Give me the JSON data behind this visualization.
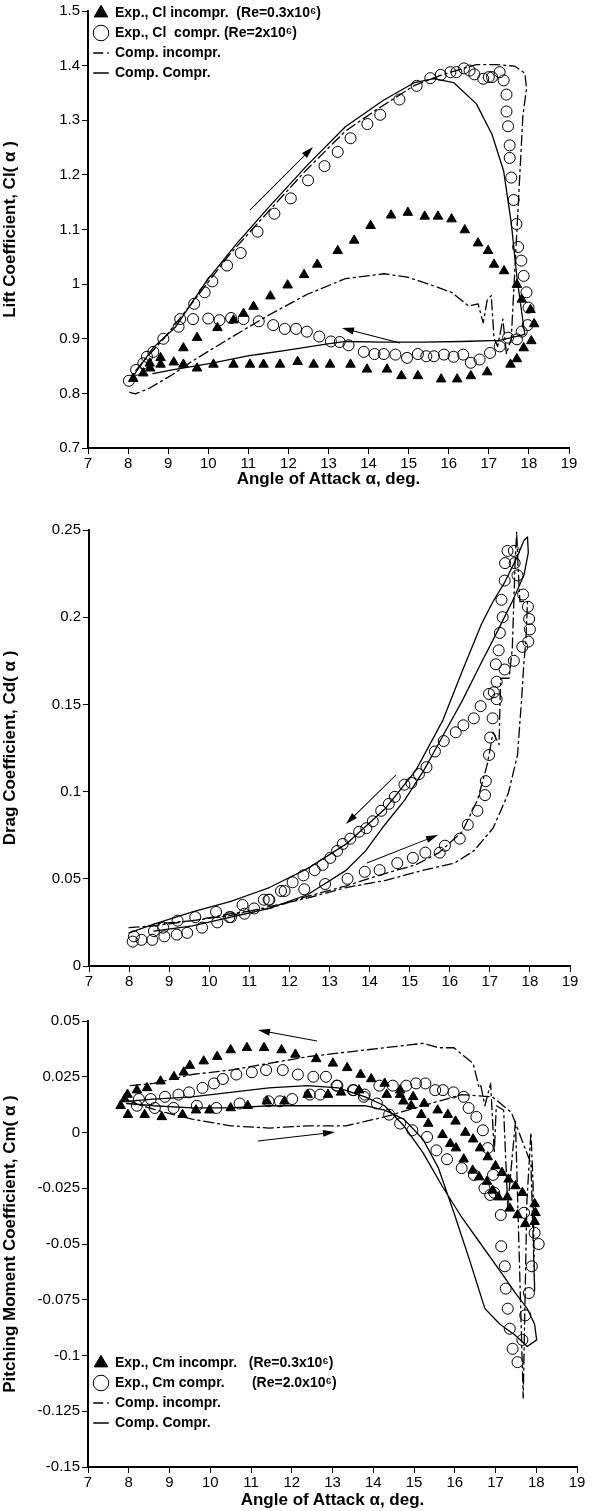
{
  "chart_data": [
    {
      "type": "scatter",
      "xlabel": "Angle of Attack α, deg.",
      "ylabel": "Lift Coefficient, Cl( α )",
      "xlim": [
        7,
        19
      ],
      "xticks": [
        7,
        8,
        9,
        10,
        11,
        12,
        13,
        14,
        15,
        16,
        17,
        18,
        19
      ],
      "ylim": [
        0.7,
        1.5
      ],
      "yticks": [
        0.7,
        0.8,
        0.9,
        1,
        1.1,
        1.2,
        1.3,
        1.4,
        1.5
      ],
      "grid": false,
      "legend": "top left",
      "series": [
        {
          "name": "Exp., Cl incompr.  (Re=0.3x10⁶)",
          "type": "scatter",
          "marker": "triangle",
          "color": "#000000",
          "x": [
            8.13,
            8.38,
            8.55,
            8.81,
            9.14,
            9.38,
            9.72,
            10.13,
            10.63,
            11.04,
            11.38,
            11.79,
            12.23,
            12.63,
            13.04,
            13.55,
            13.96,
            14.46,
            14.82,
            15.23,
            15.81,
            16.21,
            16.55,
            16.96,
            17.54,
            17.7,
            17.87,
            18.06,
            18.13,
            18.04,
            17.82,
            17.7,
            17.38,
            17.13,
            16.98,
            16.73,
            16.4,
            16.07,
            15.73,
            15.4,
            14.98,
            14.56,
            14.05,
            13.64,
            13.23,
            12.72,
            12.39,
            11.98,
            11.55,
            11.13,
            10.88,
            10.63,
            10.23,
            9.72,
            9.38,
            8.81,
            8.54
          ],
          "values": [
            0.827,
            0.837,
            0.846,
            0.853,
            0.857,
            0.853,
            0.846,
            0.853,
            0.853,
            0.853,
            0.853,
            0.853,
            0.858,
            0.853,
            0.853,
            0.853,
            0.844,
            0.844,
            0.832,
            0.832,
            0.826,
            0.826,
            0.832,
            0.839,
            0.853,
            0.863,
            0.883,
            0.896,
            0.927,
            0.953,
            0.972,
            0.999,
            1.024,
            1.036,
            1.061,
            1.075,
            1.099,
            1.119,
            1.124,
            1.124,
            1.131,
            1.126,
            1.107,
            1.08,
            1.061,
            1.036,
            1.017,
            0.998,
            0.978,
            0.959,
            0.946,
            0.934,
            0.92,
            0.902,
            0.883,
            0.865,
            0.855
          ]
        },
        {
          "name": "Exp., Cl  compr. (Re=2x10⁶)",
          "type": "scatter",
          "marker": "circle",
          "color": "#000000",
          "x": [
            8.02,
            8.2,
            8.38,
            8.47,
            8.63,
            8.88,
            9.26,
            9.65,
            9.91,
            10.1,
            10.47,
            10.81,
            11.23,
            11.65,
            12.06,
            12.49,
            12.9,
            13.23,
            13.55,
            13.97,
            14.29,
            14.77,
            15.2,
            15.54,
            15.8,
            16.04,
            16.19,
            16.38,
            16.52,
            16.64,
            16.86,
            17.0,
            17.08,
            17.27,
            17.37,
            17.44,
            17.44,
            17.48,
            17.52,
            17.52,
            17.56,
            17.62,
            17.69,
            17.73,
            17.81,
            17.87,
            17.94,
            17.99,
            17.97,
            17.82,
            17.7,
            17.48,
            17.27,
            17.03,
            16.77,
            16.55,
            16.36,
            16.12,
            15.88,
            15.63,
            15.44,
            15.23,
            14.96,
            14.67,
            14.38,
            14.15,
            13.88,
            13.5,
            13.28,
            13.06,
            12.77,
            12.46,
            12.19,
            11.91,
            11.62,
            11.26,
            10.88,
            10.57,
            10.28,
            10.0,
            9.62,
            9.3
          ],
          "values": [
            0.823,
            0.843,
            0.855,
            0.867,
            0.876,
            0.9,
            0.922,
            0.964,
            0.985,
            1.005,
            1.034,
            1.057,
            1.096,
            1.129,
            1.157,
            1.19,
            1.216,
            1.242,
            1.267,
            1.293,
            1.31,
            1.338,
            1.363,
            1.377,
            1.383,
            1.388,
            1.388,
            1.395,
            1.391,
            1.384,
            1.376,
            1.379,
            1.379,
            1.388,
            1.373,
            1.347,
            1.316,
            1.289,
            1.254,
            1.231,
            1.195,
            1.154,
            1.11,
            1.068,
            1.043,
            1.015,
            0.985,
            0.957,
            0.925,
            0.913,
            0.899,
            0.902,
            0.886,
            0.874,
            0.862,
            0.856,
            0.871,
            0.867,
            0.871,
            0.868,
            0.868,
            0.872,
            0.865,
            0.871,
            0.872,
            0.872,
            0.876,
            0.888,
            0.894,
            0.895,
            0.904,
            0.913,
            0.918,
            0.918,
            0.925,
            0.932,
            0.936,
            0.938,
            0.934,
            0.937,
            0.936,
            0.936
          ]
        },
        {
          "name": "Comp. incompr.",
          "type": "line",
          "line_style": "dashdot",
          "marker": "none",
          "color": "#000000",
          "x": [
            8.04,
            8.18,
            8.52,
            9.1,
            9.58,
            10.54,
            11.5,
            12.46,
            13.42,
            14.38,
            14.96,
            15.54,
            16.07,
            16.5,
            16.73,
            16.86,
            16.96,
            17.06,
            17.13,
            17.22,
            17.35,
            17.44,
            17.56,
            17.65,
            17.75,
            17.85,
            17.94,
            17.9,
            17.65,
            17.17,
            16.69,
            15.83,
            15.15,
            14.19,
            13.42,
            12.46,
            11.5,
            10.54,
            9.58,
            8.9,
            8.42,
            8.08
          ],
          "values": [
            0.802,
            0.799,
            0.809,
            0.834,
            0.858,
            0.901,
            0.943,
            0.981,
            1.01,
            1.019,
            1.013,
            0.999,
            0.985,
            0.96,
            0.964,
            0.929,
            0.971,
            0.979,
            0.901,
            0.886,
            0.936,
            0.872,
            0.901,
            1.027,
            1.168,
            1.309,
            1.358,
            1.386,
            1.399,
            1.402,
            1.402,
            1.383,
            1.364,
            1.319,
            1.28,
            1.21,
            1.133,
            1.055,
            0.964,
            0.901,
            0.862,
            0.832
          ]
        },
        {
          "name": "Comp. Compr.",
          "type": "line",
          "line_style": "solid",
          "marker": "none",
          "color": "#000000",
          "x": [
            8.04,
            8.62,
            9.19,
            9.96,
            10.73,
            11.5,
            12.46,
            13.42,
            14.38,
            15.15,
            15.63,
            16.12,
            16.69,
            17.08,
            17.37,
            17.56,
            17.7,
            17.87,
            17.9,
            17.27,
            16.31,
            15.35,
            14.38,
            13.42,
            12.94,
            11.98,
            11.02,
            10.06,
            9.1,
            8.62
          ],
          "values": [
            0.823,
            0.883,
            0.922,
            1.006,
            1.076,
            1.14,
            1.217,
            1.288,
            1.337,
            1.369,
            1.376,
            1.369,
            1.33,
            1.274,
            1.207,
            1.112,
            1.013,
            0.922,
            0.908,
            0.897,
            0.895,
            0.894,
            0.894,
            0.895,
            0.89,
            0.879,
            0.869,
            0.855,
            0.843,
            0.836
          ]
        }
      ]
    },
    {
      "type": "scatter",
      "ylabel": "Drag Coefficient, Cd( α )",
      "xlim": [
        7,
        19
      ],
      "xticks": [
        7,
        8,
        9,
        10,
        11,
        12,
        13,
        14,
        15,
        16,
        17,
        18,
        19
      ],
      "ylim": [
        0,
        0.25
      ],
      "yticks": [
        0,
        0.05,
        0.1,
        0.15,
        0.2,
        0.25
      ],
      "grid": false,
      "series": [
        {
          "type": "scatter",
          "marker": "circle",
          "color": "#000000",
          "x": [
            8.09,
            8.31,
            8.58,
            8.88,
            9.19,
            9.45,
            9.82,
            10.2,
            10.54,
            10.88,
            11.12,
            11.5,
            11.88,
            12.37,
            12.89,
            13.45,
            13.88,
            14.25,
            14.69,
            15.08,
            15.39,
            15.75,
            15.88,
            16.25,
            16.45,
            16.69,
            16.88,
            16.9,
            16.98,
            17.01,
            17.07,
            17.17,
            17.37,
            17.6,
            17.81,
            17.96,
            18.0,
            17.98,
            17.95,
            17.83,
            17.69,
            17.62,
            17.6,
            17.44,
            17.38,
            17.37,
            17.29,
            17.32,
            17.25,
            17.22,
            17.15,
            17.17,
            17.1,
            16.98,
            16.77,
            16.6,
            16.34,
            16.15,
            15.85,
            15.63,
            15.42,
            15.23,
            15.04,
            14.87,
            14.63,
            14.48,
            14.29,
            14.08,
            13.92,
            13.74,
            13.52,
            13.33,
            13.19,
            13.02,
            12.83,
            12.63,
            12.35,
            12.08,
            11.79,
            11.48,
            11.36,
            10.83,
            10.5,
            10.17,
            9.65,
            9.21,
            8.85,
            8.62,
            8.12
          ],
          "values": [
            0.014,
            0.015,
            0.015,
            0.017,
            0.018,
            0.019,
            0.022,
            0.025,
            0.028,
            0.03,
            0.033,
            0.038,
            0.043,
            0.044,
            0.047,
            0.05,
            0.054,
            0.055,
            0.059,
            0.062,
            0.065,
            0.065,
            0.069,
            0.073,
            0.081,
            0.089,
            0.098,
            0.106,
            0.121,
            0.131,
            0.142,
            0.153,
            0.17,
            0.175,
            0.183,
            0.186,
            0.193,
            0.199,
            0.206,
            0.213,
            0.224,
            0.231,
            0.238,
            0.238,
            0.231,
            0.221,
            0.21,
            0.2,
            0.191,
            0.181,
            0.173,
            0.163,
            0.157,
            0.156,
            0.149,
            0.142,
            0.138,
            0.134,
            0.129,
            0.123,
            0.114,
            0.11,
            0.105,
            0.104,
            0.097,
            0.093,
            0.089,
            0.083,
            0.079,
            0.077,
            0.073,
            0.07,
            0.066,
            0.062,
            0.058,
            0.055,
            0.052,
            0.048,
            0.043,
            0.038,
            0.038,
            0.035,
            0.028,
            0.031,
            0.028,
            0.026,
            0.022,
            0.02,
            0.017
          ]
        },
        {
          "type": "line",
          "line_style": "dashdot",
          "marker": "none",
          "color": "#000000",
          "x": [
            8.0,
            8.62,
            9.58,
            10.54,
            11.5,
            12.46,
            13.42,
            14.38,
            15.35,
            16.12,
            16.6,
            17.08,
            17.46,
            17.69,
            17.79,
            17.85,
            17.9,
            17.94,
            17.75,
            17.7,
            17.67,
            17.63,
            17.56,
            17.48,
            17.27,
            17.23,
            17.08,
            16.94,
            16.69,
            16.31,
            15.73,
            15.15,
            14.38,
            13.42,
            12.46,
            11.5,
            10.54,
            9.58,
            8.62
          ],
          "values": [
            0.022,
            0.023,
            0.026,
            0.029,
            0.034,
            0.039,
            0.045,
            0.049,
            0.055,
            0.059,
            0.066,
            0.079,
            0.099,
            0.121,
            0.152,
            0.174,
            0.187,
            0.209,
            0.209,
            0.231,
            0.249,
            0.231,
            0.182,
            0.165,
            0.165,
            0.127,
            0.134,
            0.116,
            0.095,
            0.077,
            0.065,
            0.058,
            0.053,
            0.046,
            0.04,
            0.033,
            0.03,
            0.026,
            0.024
          ]
        },
        {
          "type": "line",
          "line_style": "solid",
          "marker": "none",
          "color": "#000000",
          "x": [
            8.0,
            8.62,
            9.58,
            10.54,
            11.5,
            12.46,
            13.42,
            14.38,
            15.15,
            15.83,
            16.31,
            16.79,
            17.08,
            17.37,
            17.65,
            17.85,
            17.94,
            17.96,
            17.85,
            17.56,
            17.17,
            16.79,
            16.31,
            15.83,
            15.35,
            14.87,
            14.38,
            13.9,
            13.42,
            12.46,
            11.5,
            10.54,
            9.58,
            8.62
          ],
          "values": [
            0.019,
            0.024,
            0.031,
            0.037,
            0.045,
            0.056,
            0.07,
            0.09,
            0.112,
            0.141,
            0.169,
            0.196,
            0.209,
            0.22,
            0.233,
            0.244,
            0.246,
            0.237,
            0.224,
            0.209,
            0.191,
            0.174,
            0.152,
            0.132,
            0.112,
            0.095,
            0.081,
            0.066,
            0.055,
            0.041,
            0.033,
            0.028,
            0.023,
            0.02
          ]
        }
      ]
    },
    {
      "type": "scatter",
      "xlabel": "Angle of Attack α, deg.",
      "ylabel": "Pitching Moment Coefficient, Cm( α )",
      "xlim": [
        7,
        19
      ],
      "xticks": [
        7,
        8,
        9,
        10,
        11,
        12,
        13,
        14,
        15,
        16,
        17,
        18,
        19
      ],
      "ylim": [
        -0.15,
        0.05
      ],
      "yticks": [
        -0.15,
        -0.125,
        -0.1,
        -0.075,
        -0.05,
        -0.025,
        0,
        0.025,
        0.05
      ],
      "grid": false,
      "legend": "bottom left",
      "series": [
        {
          "name": "Exp., Cm incompr.   (Re=0.3x10⁶)",
          "type": "scatter",
          "marker": "triangle",
          "color": "#000000",
          "x": [
            7.8,
            7.9,
            7.97,
            8.2,
            8.45,
            8.78,
            9.11,
            9.35,
            9.5,
            9.84,
            10.17,
            10.5,
            10.9,
            11.32,
            11.75,
            12.09,
            12.6,
            13.01,
            13.36,
            13.69,
            13.95,
            14.28,
            14.66,
            14.98,
            15.25,
            15.58,
            15.83,
            16.02,
            16.26,
            16.45,
            16.62,
            16.81,
            17.0,
            17.16,
            17.32,
            17.49,
            17.66,
            17.96,
            17.98,
            17.96,
            17.73,
            17.54,
            17.35,
            17.29,
            17.07,
            16.93,
            16.79,
            16.6,
            16.44,
            16.22,
            16.03,
            15.89,
            15.7,
            15.35,
            15.18,
            14.93,
            14.74,
            14.66,
            14.33,
            13.65,
            13.21,
            12.89,
            12.39,
            11.82,
            11.39,
            10.92,
            10.5,
            9.98,
            9.65,
            9.32,
            8.81,
            8.39,
            7.98
          ],
          "values": [
            0.012,
            0.015,
            0.017,
            0.019,
            0.02,
            0.023,
            0.025,
            0.027,
            0.03,
            0.032,
            0.034,
            0.037,
            0.038,
            0.038,
            0.037,
            0.035,
            0.033,
            0.031,
            0.029,
            0.026,
            0.024,
            0.022,
            0.019,
            0.016,
            0.013,
            0.01,
            0.008,
            0.005,
            0.0,
            -0.003,
            -0.007,
            -0.011,
            -0.015,
            -0.018,
            -0.021,
            -0.024,
            -0.027,
            -0.032,
            -0.036,
            -0.04,
            -0.041,
            -0.037,
            -0.034,
            -0.029,
            -0.029,
            -0.026,
            -0.022,
            -0.02,
            -0.017,
            -0.012,
            -0.007,
            -0.005,
            -0.001,
            0.004,
            0.008,
            0.012,
            0.014,
            0.017,
            0.017,
            0.019,
            0.018,
            0.017,
            0.017,
            0.014,
            0.014,
            0.012,
            0.011,
            0.01,
            0.01,
            0.008,
            0.007,
            0.008,
            0.008
          ]
        },
        {
          "name": "Exp., Cm compr.       (Re=2.0x10⁶)",
          "type": "scatter",
          "marker": "circle",
          "color": "#000000",
          "x": [
            8.25,
            8.54,
            8.89,
            9.22,
            9.48,
            9.81,
            10.09,
            10.31,
            10.64,
            11.02,
            11.37,
            11.78,
            12.15,
            12.53,
            12.84,
            13.12,
            13.52,
            13.79,
            14.09,
            14.39,
            14.66,
            14.96,
            15.32,
            15.55,
            15.81,
            16.17,
            16.47,
            16.73,
            16.87,
            17.13,
            17.14,
            17.23,
            17.25,
            17.3,
            17.35,
            17.42,
            17.54,
            17.66,
            17.73,
            17.82,
            17.89,
            17.96,
            18.06,
            17.7,
            16.97,
            16.94,
            16.81,
            16.69,
            16.53,
            16.34,
            16.22,
            15.97,
            15.71,
            15.52,
            15.28,
            15.05,
            14.81,
            14.48,
            14.15,
            13.77,
            13.5,
            13.1,
            12.7,
            12.44,
            12.01,
            11.71,
            11.43,
            10.72,
            10.15,
            9.67,
            9.1,
            8.64,
            8.2
          ],
          "values": [
            0.015,
            0.015,
            0.016,
            0.017,
            0.018,
            0.02,
            0.022,
            0.024,
            0.026,
            0.027,
            0.028,
            0.028,
            0.026,
            0.025,
            0.025,
            0.021,
            0.019,
            0.017,
            0.013,
            0.008,
            0.004,
            0.001,
            -0.002,
            -0.008,
            -0.012,
            -0.016,
            -0.019,
            -0.025,
            -0.028,
            -0.037,
            -0.051,
            -0.06,
            -0.07,
            -0.079,
            -0.088,
            -0.097,
            -0.103,
            -0.093,
            -0.082,
            -0.072,
            -0.06,
            -0.045,
            -0.05,
            -0.036,
            -0.027,
            -0.019,
            -0.007,
            0.001,
            0.007,
            0.011,
            0.016,
            0.018,
            0.019,
            0.019,
            0.022,
            0.022,
            0.021,
            0.021,
            0.021,
            0.016,
            0.019,
            0.021,
            0.017,
            0.017,
            0.015,
            0.014,
            0.014,
            0.013,
            0.011,
            0.012,
            0.011,
            0.011,
            0.012
          ]
        },
        {
          "name": "Comp. incompr.",
          "type": "line",
          "line_style": "dashdot",
          "marker": "none",
          "color": "#000000",
          "x": [
            8.04,
            8.61,
            9.55,
            10.5,
            11.44,
            12.39,
            13.33,
            14.28,
            15.22,
            15.6,
            15.98,
            16.45,
            16.6,
            16.64,
            16.74,
            16.88,
            16.97,
            17.02,
            17.2,
            17.3,
            17.49,
            17.68,
            17.77,
            17.87,
            17.92,
            17.96,
            17.87,
            17.39,
            16.92,
            16.17,
            15.22,
            14.28,
            13.33,
            12.39,
            11.44,
            10.5,
            9.55,
            8.89,
            8.32,
            8.04
          ],
          "values": [
            0.021,
            0.022,
            0.026,
            0.028,
            0.031,
            0.034,
            0.036,
            0.038,
            0.04,
            0.038,
            0.038,
            0.031,
            0.02,
            0.021,
            0.012,
            0.022,
            -0.009,
            0.012,
            0.01,
            -0.033,
            0.005,
            -0.119,
            -0.031,
            0.0,
            -0.022,
            -0.071,
            -0.014,
            0.009,
            0.016,
            0.017,
            0.012,
            0.007,
            0.003,
            0.003,
            0.002,
            0.003,
            0.006,
            0.009,
            0.012,
            0.014
          ]
        },
        {
          "name": "Comp. Compr.",
          "type": "line",
          "line_style": "solid",
          "marker": "none",
          "color": "#000000",
          "x": [
            7.95,
            8.61,
            9.55,
            10.5,
            11.44,
            12.39,
            13.14,
            13.8,
            14.28,
            14.75,
            15.22,
            15.69,
            16.17,
            16.64,
            17.11,
            17.49,
            17.78,
            17.96,
            18.01,
            17.78,
            17.49,
            17.11,
            16.74,
            16.36,
            15.98,
            15.6,
            15.22,
            14.75,
            14.28,
            13.8,
            13.33,
            12.39,
            11.44,
            10.5,
            9.55,
            8.61,
            7.95
          ],
          "values": [
            0.014,
            0.015,
            0.016,
            0.018,
            0.02,
            0.021,
            0.02,
            0.016,
            0.012,
            0.003,
            -0.009,
            -0.024,
            -0.038,
            -0.05,
            -0.062,
            -0.072,
            -0.079,
            -0.086,
            -0.093,
            -0.096,
            -0.091,
            -0.086,
            -0.079,
            -0.057,
            -0.036,
            -0.016,
            -0.003,
            0.006,
            0.01,
            0.012,
            0.012,
            0.012,
            0.012,
            0.011,
            0.011,
            0.012,
            0.013
          ]
        }
      ]
    }
  ]
}
